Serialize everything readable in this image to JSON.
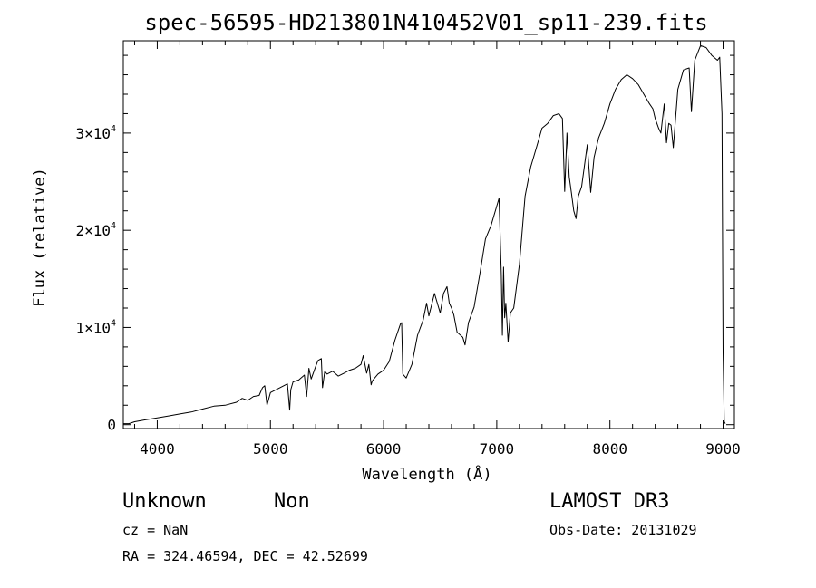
{
  "chart_data": {
    "type": "line",
    "title": "spec-56595-HD213801N410452V01_sp11-239.fits",
    "xlabel": "Wavelength (Å)",
    "ylabel": "Flux (relative)",
    "xlim": [
      3700,
      9100
    ],
    "ylim": [
      -400,
      39500
    ],
    "x_ticks": [
      {
        "value": 4000,
        "label": "4000"
      },
      {
        "value": 5000,
        "label": "5000"
      },
      {
        "value": 6000,
        "label": "6000"
      },
      {
        "value": 7000,
        "label": "7000"
      },
      {
        "value": 8000,
        "label": "8000"
      },
      {
        "value": 9000,
        "label": "9000"
      }
    ],
    "y_ticks": [
      {
        "value": 0,
        "label": "0"
      },
      {
        "value": 10000,
        "label": "1×10",
        "exp": "4"
      },
      {
        "value": 20000,
        "label": "2×10",
        "exp": "4"
      },
      {
        "value": 30000,
        "label": "3×10",
        "exp": "4"
      }
    ],
    "grid": false,
    "series": [
      {
        "x": [
          3700,
          3750,
          3800,
          3900,
          4000,
          4100,
          4200,
          4300,
          4400,
          4500,
          4600,
          4700,
          4750,
          4800,
          4850,
          4900,
          4930,
          4950,
          4970,
          5000,
          5100,
          5150,
          5170,
          5180,
          5200,
          5250,
          5300,
          5320,
          5340,
          5360,
          5400,
          5420,
          5450,
          5460,
          5480,
          5500,
          5550,
          5600,
          5650,
          5700,
          5750,
          5800,
          5820,
          5850,
          5870,
          5890,
          5900,
          5950,
          6000,
          6050,
          6100,
          6150,
          6160,
          6170,
          6200,
          6250,
          6300,
          6350,
          6380,
          6400,
          6450,
          6500,
          6530,
          6560,
          6580,
          6600,
          6620,
          6650,
          6700,
          6720,
          6750,
          6800,
          6850,
          6900,
          6950,
          7000,
          7020,
          7040,
          7050,
          7060,
          7070,
          7080,
          7100,
          7120,
          7150,
          7200,
          7250,
          7300,
          7350,
          7400,
          7450,
          7500,
          7550,
          7580,
          7600,
          7620,
          7640,
          7660,
          7680,
          7700,
          7720,
          7750,
          7800,
          7830,
          7860,
          7900,
          7950,
          8000,
          8050,
          8100,
          8150,
          8200,
          8250,
          8300,
          8350,
          8380,
          8400,
          8430,
          8450,
          8480,
          8500,
          8520,
          8540,
          8560,
          8580,
          8600,
          8650,
          8700,
          8720,
          8750,
          8800,
          8850,
          8900,
          8950,
          8970,
          8990,
          9000,
          9010,
          9020
        ],
        "y": [
          100,
          100,
          300,
          500,
          700,
          900,
          1100,
          1300,
          1600,
          1900,
          2000,
          2300,
          2700,
          2500,
          2900,
          3000,
          3800,
          4000,
          2000,
          3300,
          3900,
          4200,
          1500,
          3600,
          4400,
          4600,
          5100,
          2900,
          5800,
          4700,
          6000,
          6600,
          6800,
          3800,
          5500,
          5200,
          5500,
          5000,
          5300,
          5600,
          5800,
          6200,
          7100,
          5300,
          6200,
          4100,
          4500,
          5200,
          5600,
          6500,
          8700,
          10400,
          10500,
          5200,
          4800,
          6200,
          9200,
          10800,
          12500,
          11200,
          13500,
          11500,
          13500,
          14200,
          12500,
          12000,
          11300,
          9500,
          9000,
          8200,
          10500,
          12100,
          15500,
          19100,
          20500,
          22500,
          23300,
          15500,
          9200,
          16200,
          11000,
          12500,
          8500,
          11500,
          12000,
          16500,
          23500,
          26500,
          28500,
          30500,
          31000,
          31800,
          32000,
          31500,
          24000,
          30000,
          25500,
          23800,
          22000,
          21200,
          23500,
          24500,
          28800,
          23900,
          27500,
          29500,
          31000,
          33000,
          34500,
          35500,
          36000,
          35600,
          35000,
          34000,
          33000,
          32500,
          31500,
          30500,
          30000,
          33000,
          29000,
          31000,
          30800,
          28500,
          31500,
          34500,
          36500,
          36700,
          32200,
          37500,
          39000,
          38800,
          38000,
          37500,
          37800,
          32000,
          7400,
          300,
          100
        ]
      }
    ]
  },
  "footer": {
    "object": "Unknown",
    "class": "Non",
    "survey": "LAMOST DR3",
    "cz": "cz = NaN",
    "obs_date": "Obs-Date: 20131029",
    "coords": "RA = 324.46594, DEC =  42.52699"
  }
}
